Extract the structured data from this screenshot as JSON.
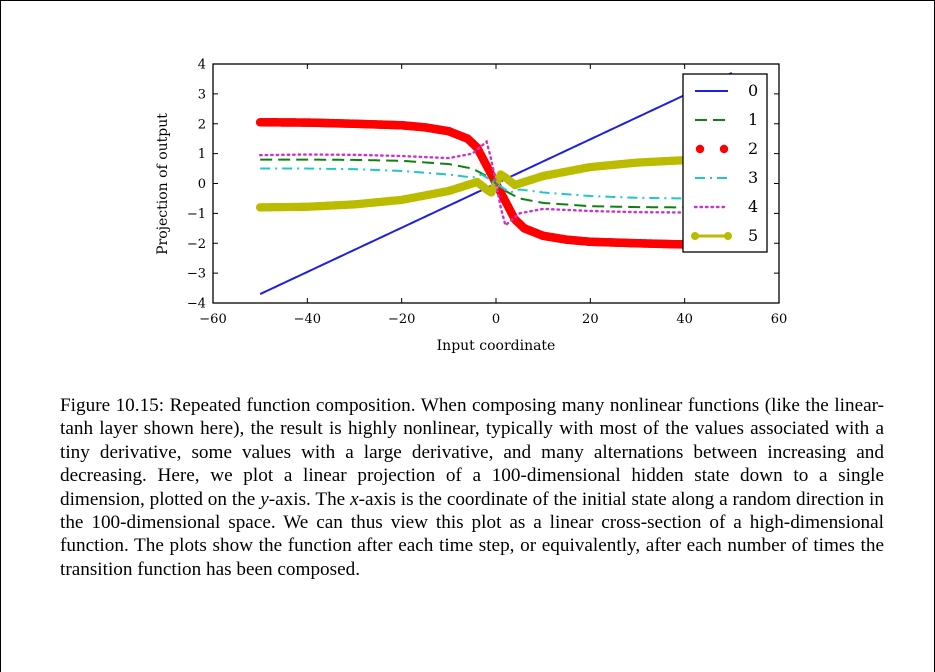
{
  "figure": {
    "ylabel": "Projection of output",
    "xlabel": "Input coordinate",
    "legend": [
      "0",
      "1",
      "2",
      "3",
      "4",
      "5"
    ]
  },
  "chart_data": {
    "type": "line",
    "title": "",
    "xlabel": "Input coordinate",
    "ylabel": "Projection of output",
    "xlim": [
      -60,
      60
    ],
    "ylim": [
      -4,
      4
    ],
    "xticks": [
      "−60",
      "−40",
      "−20",
      "0",
      "20",
      "40",
      "60"
    ],
    "yticks": [
      "−4",
      "−3",
      "−2",
      "−1",
      "0",
      "1",
      "2",
      "3",
      "4"
    ],
    "grid": false,
    "legend_position": "top-right",
    "series": [
      {
        "name": "0",
        "color": "#1f1fe0",
        "style": "solid",
        "x": [
          -50,
          50
        ],
        "y": [
          -3.7,
          3.7
        ]
      },
      {
        "name": "1",
        "color": "#108010",
        "style": "dashed",
        "x": [
          -50,
          -40,
          -30,
          -20,
          -10,
          -5,
          -2,
          0,
          2,
          5,
          10,
          20,
          30,
          40,
          50
        ],
        "y": [
          0.8,
          0.8,
          0.79,
          0.76,
          0.65,
          0.5,
          0.25,
          0,
          -0.25,
          -0.5,
          -0.65,
          -0.76,
          -0.79,
          -0.8,
          -0.8
        ]
      },
      {
        "name": "2",
        "color": "#ff0000",
        "style": "thick-dots",
        "x": [
          -50,
          -40,
          -30,
          -20,
          -15,
          -10,
          -6,
          -4,
          -2,
          -1,
          0,
          1,
          2,
          4,
          6,
          10,
          15,
          20,
          30,
          40,
          50
        ],
        "y": [
          2.05,
          2.04,
          2.0,
          1.95,
          1.88,
          1.75,
          1.5,
          1.2,
          0.6,
          0.3,
          0,
          -0.3,
          -0.6,
          -1.2,
          -1.5,
          -1.75,
          -1.88,
          -1.95,
          -2.0,
          -2.04,
          -2.05
        ]
      },
      {
        "name": "3",
        "color": "#1fc8c8",
        "style": "dashdot",
        "x": [
          -50,
          -40,
          -30,
          -20,
          -10,
          -5,
          -3,
          -1,
          0,
          1,
          3,
          5,
          10,
          20,
          30,
          40,
          50
        ],
        "y": [
          0.5,
          0.5,
          0.48,
          0.42,
          0.3,
          0.2,
          0.3,
          0.1,
          0,
          -0.1,
          -0.3,
          -0.2,
          -0.3,
          -0.42,
          -0.48,
          -0.5,
          -0.5
        ]
      },
      {
        "name": "4",
        "color": "#cc33cc",
        "style": "dotted",
        "x": [
          -50,
          -40,
          -30,
          -20,
          -10,
          -5,
          -2,
          -1,
          0,
          1,
          2,
          5,
          10,
          20,
          30,
          40,
          50
        ],
        "y": [
          0.95,
          0.97,
          0.96,
          0.92,
          0.85,
          1.0,
          1.4,
          0.8,
          0,
          -0.8,
          -1.4,
          -1.0,
          -0.85,
          -0.92,
          -0.96,
          -0.97,
          -0.95
        ]
      },
      {
        "name": "5",
        "color": "#bbbb00",
        "style": "thick-line-markers",
        "x": [
          -50,
          -40,
          -30,
          -20,
          -15,
          -10,
          -6,
          -4,
          -2,
          -1,
          0,
          1,
          2,
          4,
          6,
          10,
          15,
          20,
          30,
          40,
          50
        ],
        "y": [
          -0.8,
          -0.78,
          -0.7,
          -0.55,
          -0.4,
          -0.25,
          -0.05,
          0.05,
          -0.2,
          -0.3,
          0,
          0.3,
          0.2,
          -0.05,
          0.05,
          0.25,
          0.4,
          0.55,
          0.7,
          0.78,
          0.8
        ]
      }
    ]
  },
  "caption": {
    "p1": "Figure 10.15: Repeated function composition. When composing many nonlinear functions (like the linear-tanh layer shown here), the result is highly nonlinear, typically with most of the values associated with a tiny derivative, some values with a large derivative, and many alternations between increasing and decreasing. Here, we plot a linear projection of a 100-dimensional hidden state down to a single dimension, plotted on the ",
    "y_var": "y",
    "p2": "-axis. The ",
    "x_var": "x",
    "p3": "-axis is the coordinate of the initial state along a random direction in the 100-dimensional space. We can thus view this plot as a linear cross-section of a high-dimensional function. The plots show the function after each time step, or equivalently, after each number of times the transition function has been composed."
  }
}
